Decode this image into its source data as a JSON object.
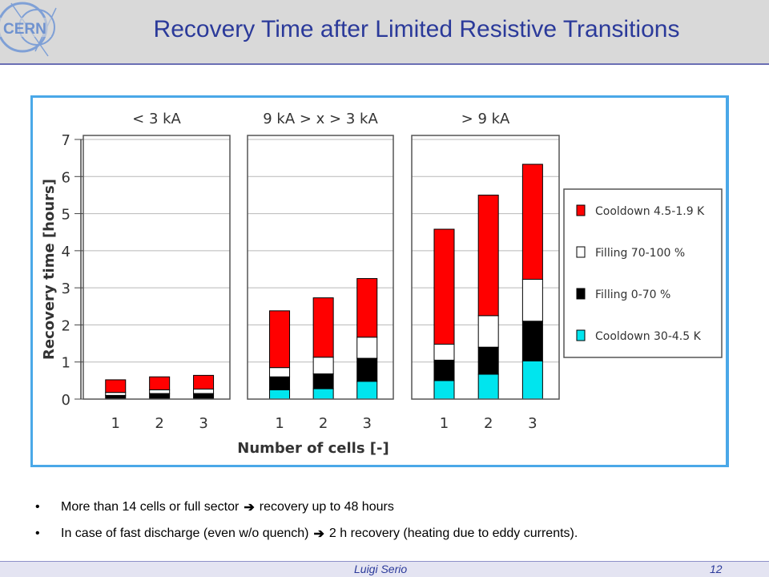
{
  "slide": {
    "title": "Recovery Time after Limited Resistive Transitions",
    "logo_text": "CERN",
    "bullets": [
      {
        "before": "More than 14 cells or full sector",
        "after": "recovery up to 48 hours"
      },
      {
        "before": "In case of fast discharge (even w/o quench)",
        "after": "2 h recovery (heating due to eddy currents)."
      }
    ],
    "footer_author": "Luigi Serio",
    "footer_page": "12"
  },
  "chart_data": {
    "type": "bar",
    "stacked": true,
    "ylabel": "Recovery time [hours]",
    "xlabel": "Number of cells [-]",
    "ylim": [
      0,
      7
    ],
    "yticks": [
      "0",
      "1",
      "2",
      "3",
      "4",
      "5",
      "6",
      "7"
    ],
    "grid": true,
    "legend_position": "right",
    "series_order_bottom_to_top": [
      "Cooldown 30-4.5 K",
      "Filling 0-70 %",
      "Filling 70-100 %",
      "Cooldown 4.5-1.9 K"
    ],
    "colors": {
      "Cooldown 4.5-1.9 K": "#ff0000",
      "Filling 70-100 %": "#ffffff",
      "Filling 0-70 %": "#000000",
      "Cooldown 30-4.5 K": "#00e5ee"
    },
    "legend": [
      "Cooldown 4.5-1.9 K",
      "Filling 70-100 %",
      "Filling 0-70 %",
      "Cooldown 30-4.5 K"
    ],
    "panels": [
      {
        "title": "< 3 kA",
        "categories": [
          "1",
          "2",
          "3"
        ],
        "series": [
          {
            "name": "Cooldown 30-4.5 K",
            "values": [
              0,
              0,
              0
            ]
          },
          {
            "name": "Filling 0-70 %",
            "values": [
              0.1,
              0.15,
              0.15
            ]
          },
          {
            "name": "Filling 70-100 %",
            "values": [
              0.08,
              0.1,
              0.12
            ]
          },
          {
            "name": "Cooldown 4.5-1.9 K",
            "values": [
              0.34,
              0.35,
              0.37
            ]
          }
        ]
      },
      {
        "title": "9 kA > x > 3 kA",
        "categories": [
          "1",
          "2",
          "3"
        ],
        "series": [
          {
            "name": "Cooldown 30-4.5 K",
            "values": [
              0.25,
              0.28,
              0.48
            ]
          },
          {
            "name": "Filling 0-70 %",
            "values": [
              0.35,
              0.4,
              0.62
            ]
          },
          {
            "name": "Filling 70-100 %",
            "values": [
              0.25,
              0.45,
              0.57
            ]
          },
          {
            "name": "Cooldown 4.5-1.9 K",
            "values": [
              1.53,
              1.6,
              1.58
            ]
          }
        ]
      },
      {
        "title": "> 9 kA",
        "categories": [
          "1",
          "2",
          "3"
        ],
        "series": [
          {
            "name": "Cooldown 30-4.5 K",
            "values": [
              0.5,
              0.67,
              1.03
            ]
          },
          {
            "name": "Filling 0-70 %",
            "values": [
              0.55,
              0.73,
              1.07
            ]
          },
          {
            "name": "Filling 70-100 %",
            "values": [
              0.43,
              0.85,
              1.13
            ]
          },
          {
            "name": "Cooldown 4.5-1.9 K",
            "values": [
              3.1,
              3.25,
              3.1
            ]
          }
        ]
      }
    ]
  }
}
